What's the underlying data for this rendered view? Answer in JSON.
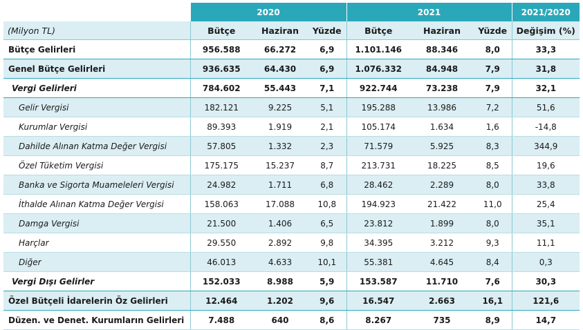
{
  "header": {
    "year1": "2020",
    "year2": "2021",
    "change": "2021/2020",
    "unit_label": "(Milyon TL)",
    "cols": [
      "Bütçe",
      "Haziran",
      "Yüzde",
      "Bütçe",
      "Haziran",
      "Yüzde",
      "Değişim (%)"
    ]
  },
  "rows": [
    {
      "label": "Bütçe Gelirleri",
      "v": [
        "956.588",
        "66.272",
        "6,9",
        "1.101.146",
        "88.346",
        "8,0",
        "33,3"
      ]
    },
    {
      "label": "Genel Bütçe Gelirleri",
      "v": [
        "936.635",
        "64.430",
        "6,9",
        "1.076.332",
        "84.948",
        "7,9",
        "31,8"
      ]
    },
    {
      "label": "Vergi Gelirleri",
      "v": [
        "784.602",
        "55.443",
        "7,1",
        "922.744",
        "73.238",
        "7,9",
        "32,1"
      ]
    },
    {
      "label": "Gelir Vergisi",
      "v": [
        "182.121",
        "9.225",
        "5,1",
        "195.288",
        "13.986",
        "7,2",
        "51,6"
      ]
    },
    {
      "label": "Kurumlar Vergisi",
      "v": [
        "89.393",
        "1.919",
        "2,1",
        "105.174",
        "1.634",
        "1,6",
        "-14,8"
      ]
    },
    {
      "label": "Dahilde Alınan Katma Değer Vergisi",
      "v": [
        "57.805",
        "1.332",
        "2,3",
        "71.579",
        "5.925",
        "8,3",
        "344,9"
      ]
    },
    {
      "label": "Özel Tüketim Vergisi",
      "v": [
        "175.175",
        "15.237",
        "8,7",
        "213.731",
        "18.225",
        "8,5",
        "19,6"
      ]
    },
    {
      "label": "Banka ve Sigorta Muameleleri Vergisi",
      "v": [
        "24.982",
        "1.711",
        "6,8",
        "28.462",
        "2.289",
        "8,0",
        "33,8"
      ]
    },
    {
      "label": "İthalde Alınan Katma Değer Vergisi",
      "v": [
        "158.063",
        "17.088",
        "10,8",
        "194.923",
        "21.422",
        "11,0",
        "25,4"
      ]
    },
    {
      "label": "Damga Vergisi",
      "v": [
        "21.500",
        "1.406",
        "6,5",
        "23.812",
        "1.899",
        "8,0",
        "35,1"
      ]
    },
    {
      "label": "Harçlar",
      "v": [
        "29.550",
        "2.892",
        "9,8",
        "34.395",
        "3.212",
        "9,3",
        "11,1"
      ]
    },
    {
      "label": "Diğer",
      "v": [
        "46.013",
        "4.633",
        "10,1",
        "55.381",
        "4.645",
        "8,4",
        "0,3"
      ]
    },
    {
      "label": "Vergi Dışı Gelirler",
      "v": [
        "152.033",
        "8.988",
        "5,9",
        "153.587",
        "11.710",
        "7,6",
        "30,3"
      ]
    },
    {
      "label": "Özel Bütçeli İdarelerin Öz Gelirleri",
      "v": [
        "12.464",
        "1.202",
        "9,6",
        "16.547",
        "2.663",
        "16,1",
        "121,6"
      ]
    },
    {
      "label": "Düzen. ve Denet. Kurumların Gelirleri",
      "v": [
        "7.488",
        "640",
        "8,6",
        "8.267",
        "735",
        "8,9",
        "14,7"
      ]
    }
  ],
  "colors": {
    "header_bg": "#2aa8ba",
    "shade_bg": "#daeef3",
    "rule": "#b6dde4"
  }
}
